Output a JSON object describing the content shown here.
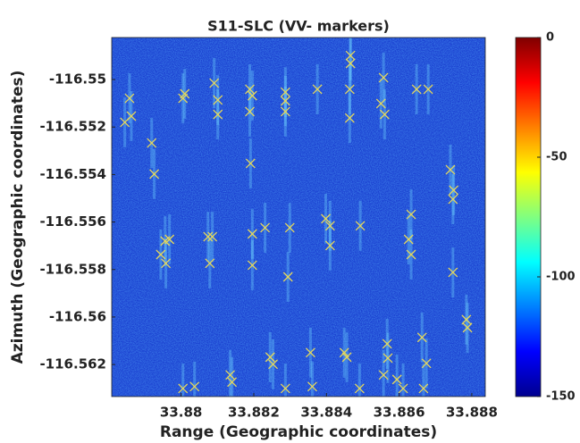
{
  "chart_data": {
    "type": "scatter",
    "title": "S11-SLC (VV- markers)",
    "x_label": "Range (Geographic coordinates)",
    "y_label": "Azimuth (Geographic coordinates)",
    "xlim": [
      33.87809,
      33.88837
    ],
    "ylim": [
      -116.56335,
      -116.54823
    ],
    "xticks": [
      33.88,
      33.882,
      33.884,
      33.886,
      33.888
    ],
    "yticks": [
      -116.562,
      -116.56,
      -116.558,
      -116.556,
      -116.554,
      -116.552,
      -116.55
    ],
    "background_color": "#1a3fd0",
    "series": [
      {
        "color": "#e6d85a",
        "x": [
          33.87858,
          33.87863,
          33.87845,
          33.87919,
          33.87926,
          33.87956,
          33.87968,
          33.87944,
          33.87958,
          33.88005,
          33.8801,
          33.88091,
          33.88101,
          33.88101,
          33.88086,
          33.88079,
          33.88189,
          33.88196,
          33.88189,
          33.88191,
          33.88196,
          33.88196,
          33.88287,
          33.88287,
          33.88287,
          33.88294,
          33.88299,
          33.88375,
          33.8841,
          33.88398,
          33.8841,
          33.88466,
          33.88466,
          33.88464,
          33.88464,
          33.88493,
          33.88557,
          33.8855,
          33.8856,
          33.88633,
          33.88626,
          33.88633,
          33.88648,
          33.8868,
          33.88741,
          33.8875,
          33.88748,
          33.88748,
          33.88785,
          33.88788,
          33.88005,
          33.88037,
          33.88135,
          33.8814,
          33.88245,
          33.88253,
          33.88287,
          33.88356,
          33.88361,
          33.88449,
          33.88456,
          33.88491,
          33.88567,
          33.88569,
          33.88557,
          33.88594,
          33.88667,
          33.88663,
          33.88675,
          33.88611,
          33.88074,
          33.88231
        ],
        "y": [
          -116.55079,
          -116.55154,
          -116.5518,
          -116.55267,
          -116.55398,
          -116.5568,
          -116.55673,
          -116.55737,
          -116.55774,
          -116.55079,
          -116.5506,
          -116.55015,
          -116.55086,
          -116.55147,
          -116.55662,
          -116.55774,
          -116.55041,
          -116.55068,
          -116.55135,
          -116.55353,
          -116.5565,
          -116.55782,
          -116.55053,
          -116.5509,
          -116.55135,
          -116.55831,
          -116.55624,
          -116.55041,
          -116.55616,
          -116.55586,
          -116.55699,
          -116.54899,
          -116.54932,
          -116.55041,
          -116.55162,
          -116.55616,
          -116.54992,
          -116.55101,
          -116.55147,
          -116.55568,
          -116.55673,
          -116.55737,
          -116.55041,
          -116.55041,
          -116.5538,
          -116.55466,
          -116.55504,
          -116.55812,
          -116.56011,
          -116.56045,
          -116.56301,
          -116.56293,
          -116.56244,
          -116.56274,
          -116.56169,
          -116.56199,
          -116.56301,
          -116.5615,
          -116.56293,
          -116.5615,
          -116.56169,
          -116.56301,
          -116.56113,
          -116.56173,
          -116.56244,
          -116.56263,
          -116.56301,
          -116.56086,
          -116.56195,
          -116.56301,
          -116.55662,
          -116.55624
        ]
      }
    ],
    "colorbar": {
      "clim": [
        -150,
        0
      ],
      "ticks": [
        0,
        -50,
        -100,
        -150
      ],
      "colormap": [
        "#00008f",
        "#0000ff",
        "#0080ff",
        "#00ffff",
        "#80ff80",
        "#ffff00",
        "#ff8000",
        "#ff0000",
        "#800000"
      ]
    }
  }
}
